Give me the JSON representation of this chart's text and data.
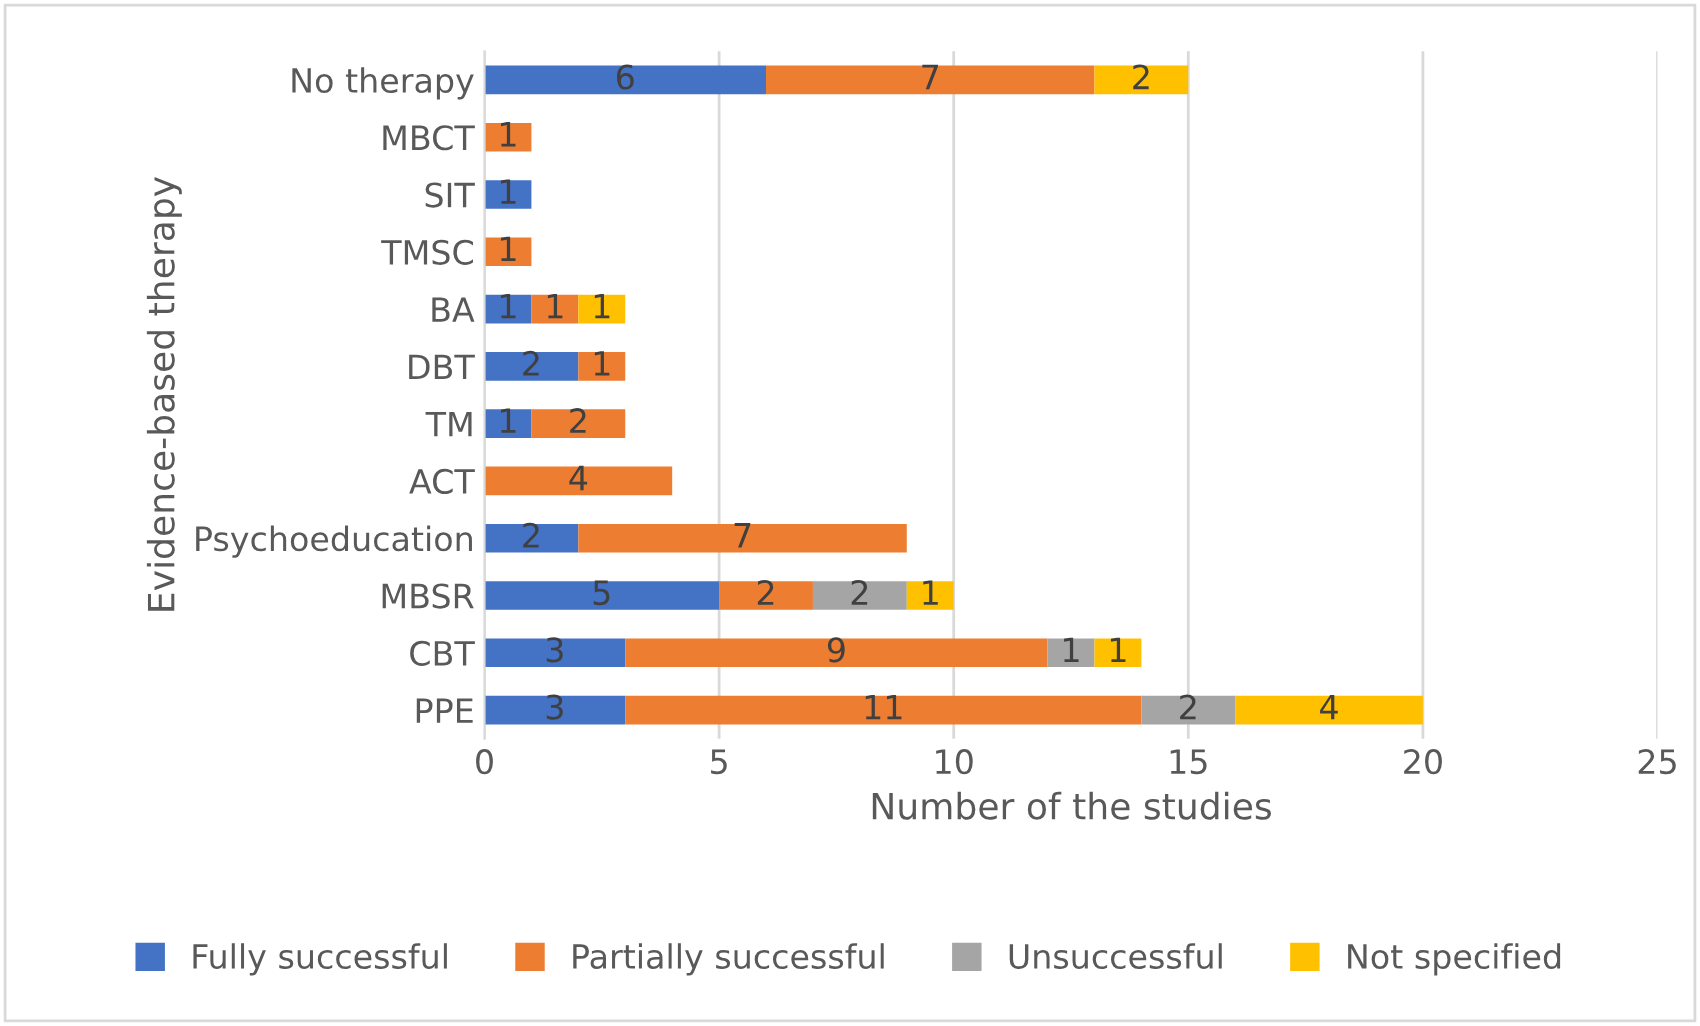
{
  "chart_data": {
    "type": "bar",
    "orientation": "horizontal",
    "stacked": true,
    "ylabel": "Evidence-based therapy",
    "xlabel": "Number of the studies",
    "categories": [
      "No therapy",
      "MBCT",
      "SIT",
      "TMSC",
      "BA",
      "DBT",
      "TM",
      "ACT",
      "Psychoeducation",
      "MBSR",
      "CBT",
      "PPE"
    ],
    "series": [
      {
        "name": "Fully successful",
        "color": "#4472c4",
        "values": [
          6,
          null,
          1,
          null,
          1,
          2,
          1,
          null,
          2,
          5,
          3,
          3
        ]
      },
      {
        "name": "Partially successful",
        "color": "#ed7d31",
        "values": [
          7,
          1,
          null,
          1,
          1,
          1,
          2,
          4,
          7,
          2,
          9,
          11
        ]
      },
      {
        "name": "Unsuccessful",
        "color": "#a5a5a5",
        "values": [
          null,
          null,
          null,
          null,
          null,
          null,
          null,
          null,
          null,
          2,
          1,
          2
        ]
      },
      {
        "name": "Not specified",
        "color": "#ffc000",
        "values": [
          2,
          null,
          null,
          null,
          1,
          null,
          null,
          null,
          null,
          1,
          1,
          4
        ]
      }
    ],
    "xlim": [
      0,
      25
    ],
    "xticks": [
      0,
      5,
      10,
      15,
      20,
      25
    ],
    "grid": "x",
    "legend": "bottom",
    "data_labels": true
  }
}
